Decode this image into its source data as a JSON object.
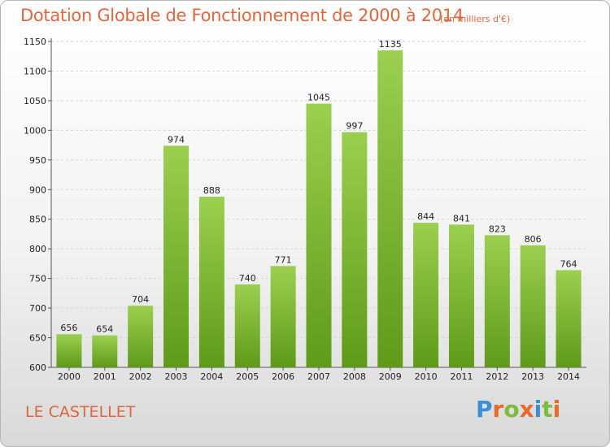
{
  "title": "Dotation Globale de Fonctionnement de 2000 à 2014",
  "unit_note": "(en milliers d'€)",
  "commune": "LE CASTELLET",
  "logo": {
    "text": "Proxiti",
    "letters": [
      {
        "ch": "P",
        "color": "#3a8fd6"
      },
      {
        "ch": "r",
        "color": "#e86a2c"
      },
      {
        "ch": "o",
        "color": "#7cbd3a"
      },
      {
        "ch": "x",
        "color": "#e86a2c"
      },
      {
        "ch": "i",
        "color": "#3a8fd6"
      },
      {
        "ch": "t",
        "color": "#7cbd3a"
      },
      {
        "ch": "i",
        "color": "#e86a2c"
      }
    ]
  },
  "colors": {
    "accent": "#e0663b",
    "bar_top": "#9ccf4f",
    "bar_bottom": "#5f9a1b",
    "grid": "#d6d6d6"
  },
  "chart_data": {
    "type": "bar",
    "title": "Dotation Globale de Fonctionnement de 2000 à 2014",
    "xlabel": "",
    "ylabel": "",
    "categories": [
      "2000",
      "2001",
      "2002",
      "2003",
      "2004",
      "2005",
      "2006",
      "2007",
      "2008",
      "2009",
      "2010",
      "2011",
      "2012",
      "2013",
      "2014"
    ],
    "values": [
      656,
      654,
      704,
      974,
      888,
      740,
      771,
      1045,
      997,
      1135,
      844,
      841,
      823,
      806,
      764
    ],
    "ylim": [
      600,
      1150
    ],
    "yticks": [
      600,
      650,
      700,
      750,
      800,
      850,
      900,
      950,
      1000,
      1050,
      1100,
      1150
    ],
    "grid": true,
    "legend": "none"
  }
}
